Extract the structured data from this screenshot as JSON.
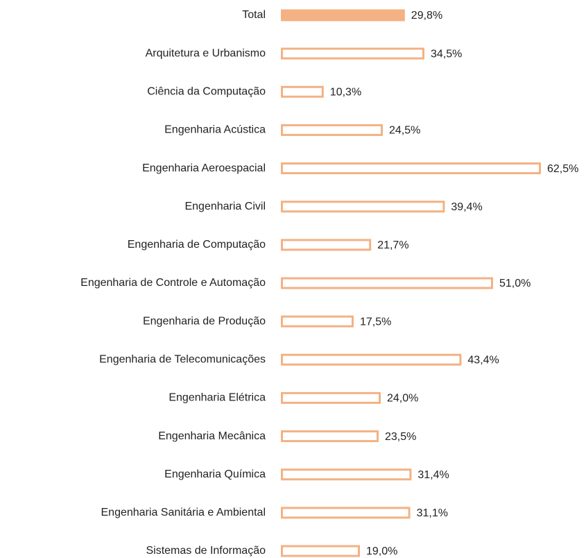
{
  "chart_data": {
    "type": "barh",
    "categories": [
      "Total",
      "Arquitetura e Urbanismo",
      "Ciência da Computação",
      "Engenharia Acústica",
      "Engenharia Aeroespacial",
      "Engenharia Civil",
      "Engenharia de Computação",
      "Engenharia de Controle e Automação",
      "Engenharia de Produção",
      "Engenharia de Telecomunicações",
      "Engenharia Elétrica",
      "Engenharia Mecânica",
      "Engenharia Química",
      "Engenharia Sanitária e Ambiental",
      "Sistemas de Informação"
    ],
    "values": [
      29.8,
      34.5,
      10.3,
      24.5,
      62.5,
      39.4,
      21.7,
      51.0,
      17.5,
      43.4,
      24.0,
      23.5,
      31.4,
      31.1,
      19.0
    ],
    "value_labels": [
      "29,8%",
      "34,5%",
      "10,3%",
      "24,5%",
      "62,5%",
      "39,4%",
      "21,7%",
      "51,0%",
      "17,5%",
      "43,4%",
      "24,0%",
      "23,5%",
      "31,4%",
      "31,1%",
      "19,0%"
    ],
    "color": "#f4b183",
    "fill_colors": [
      "#f4b183",
      "#ffffff",
      "#ffffff",
      "#ffffff",
      "#ffffff",
      "#ffffff",
      "#ffffff",
      "#ffffff",
      "#ffffff",
      "#ffffff",
      "#ffffff",
      "#ffffff",
      "#ffffff",
      "#ffffff",
      "#ffffff"
    ]
  }
}
